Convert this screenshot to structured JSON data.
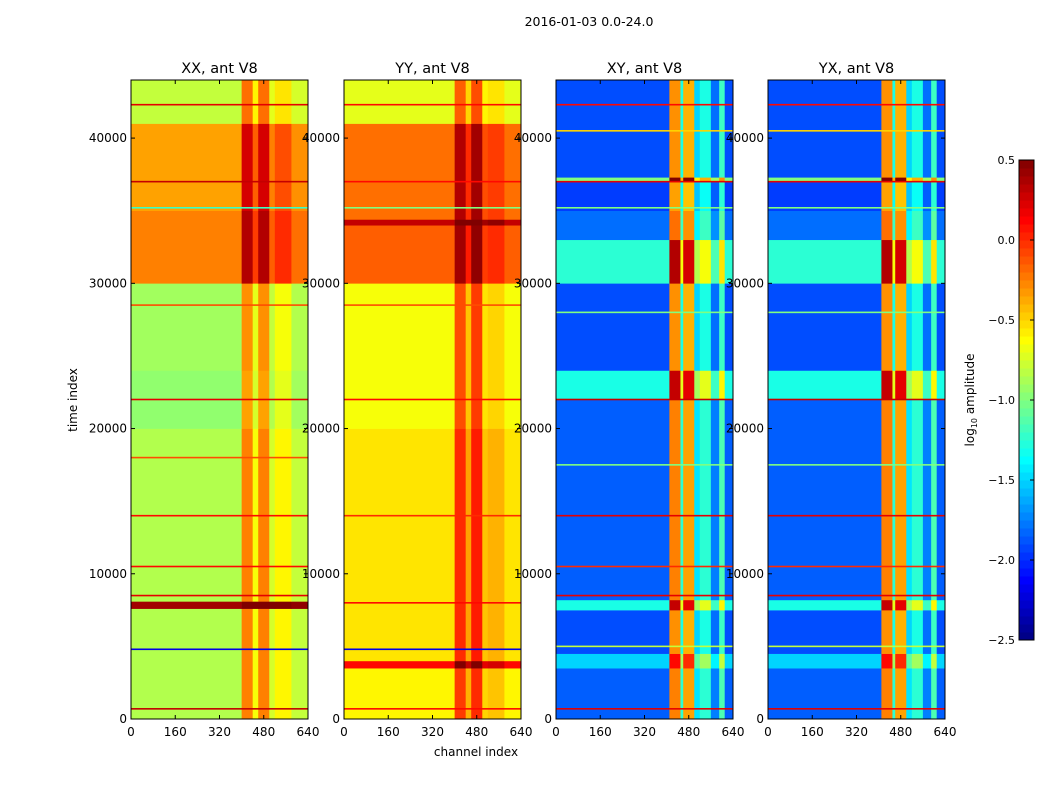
{
  "chart_data": {
    "type": "heatmap",
    "title": "2016-01-03 0.0-24.0",
    "xlabel": "channel index",
    "ylabel": "time index",
    "xlim": [
      0,
      640
    ],
    "ylim": [
      0,
      44000
    ],
    "xticks": [
      0,
      160,
      320,
      480,
      640
    ],
    "yticks": [
      0,
      10000,
      20000,
      30000,
      40000
    ],
    "colorbar": {
      "label_main": "log",
      "label_sub": "10",
      "label_rest": " amplitude",
      "colormap": "jet",
      "range": [
        -2.5,
        0.5
      ],
      "ticks": [
        "0.5",
        "0.0",
        "−0.5",
        "−1.0",
        "−1.5",
        "−2.0",
        "−2.5"
      ],
      "tick_values": [
        0.5,
        0.0,
        -0.5,
        -1.0,
        -1.5,
        -2.0,
        -2.5
      ]
    },
    "panels": [
      {
        "title": "XX, ant V8",
        "time_bands": [
          [
            0,
            7600,
            -0.85
          ],
          [
            7600,
            8100,
            0.4
          ],
          [
            8100,
            20000,
            -0.85
          ],
          [
            20000,
            24000,
            -0.95
          ],
          [
            24000,
            30000,
            -0.9
          ],
          [
            30000,
            35000,
            -0.25
          ],
          [
            35000,
            41000,
            -0.35
          ],
          [
            41000,
            44000,
            -0.8
          ]
        ],
        "channel_bands": [
          [
            0,
            400,
            0
          ],
          [
            400,
            440,
            0.6
          ],
          [
            440,
            460,
            0.2
          ],
          [
            460,
            500,
            0.6
          ],
          [
            500,
            520,
            0.1
          ],
          [
            520,
            580,
            0.25
          ],
          [
            580,
            640,
            0.05
          ]
        ],
        "lines": [
          [
            700,
            0.3
          ],
          [
            4800,
            -2.2
          ],
          [
            8500,
            0.2
          ],
          [
            10500,
            0.1
          ],
          [
            14000,
            0.1
          ],
          [
            18000,
            -0.1
          ],
          [
            22000,
            0.2
          ],
          [
            28500,
            -0.1
          ],
          [
            35200,
            -1.2
          ],
          [
            37000,
            0.3
          ],
          [
            42300,
            0.2
          ]
        ]
      },
      {
        "title": "YY, ant V8",
        "time_bands": [
          [
            0,
            3500,
            -0.6
          ],
          [
            3500,
            4000,
            0.1
          ],
          [
            4000,
            20000,
            -0.55
          ],
          [
            20000,
            30000,
            -0.65
          ],
          [
            30000,
            34000,
            -0.15
          ],
          [
            34000,
            34400,
            0.3
          ],
          [
            34400,
            41000,
            -0.2
          ],
          [
            41000,
            44000,
            -0.7
          ]
        ],
        "channel_bands": [
          [
            0,
            400,
            0
          ],
          [
            400,
            440,
            0.55
          ],
          [
            440,
            460,
            0.2
          ],
          [
            460,
            500,
            0.6
          ],
          [
            500,
            520,
            0.1
          ],
          [
            520,
            580,
            0.15
          ],
          [
            580,
            640,
            0.0
          ]
        ],
        "lines": [
          [
            700,
            0.1
          ],
          [
            4800,
            -2.2
          ],
          [
            8000,
            0.1
          ],
          [
            14000,
            0.0
          ],
          [
            22000,
            0.1
          ],
          [
            28500,
            -0.1
          ],
          [
            35200,
            -1.0
          ],
          [
            37000,
            0.1
          ],
          [
            42300,
            0.1
          ]
        ]
      },
      {
        "title": "XY, ant V8",
        "time_bands": [
          [
            0,
            3500,
            -1.85
          ],
          [
            3500,
            4500,
            -1.5
          ],
          [
            4500,
            7500,
            -1.9
          ],
          [
            7500,
            8200,
            -1.3
          ],
          [
            8200,
            22000,
            -1.85
          ],
          [
            22000,
            24000,
            -1.3
          ],
          [
            24000,
            30000,
            -1.9
          ],
          [
            30000,
            33000,
            -1.25
          ],
          [
            33000,
            35000,
            -1.8
          ],
          [
            35000,
            37000,
            -1.95
          ],
          [
            37000,
            37300,
            -1.0
          ],
          [
            37300,
            44000,
            -1.9
          ]
        ],
        "channel_bands": [
          [
            0,
            410,
            0
          ],
          [
            410,
            450,
            1.6
          ],
          [
            450,
            460,
            0.6
          ],
          [
            460,
            500,
            1.5
          ],
          [
            500,
            520,
            0.4
          ],
          [
            520,
            560,
            0.6
          ],
          [
            560,
            590,
            0.1
          ],
          [
            590,
            610,
            0.7
          ],
          [
            610,
            640,
            0.0
          ]
        ],
        "lines": [
          [
            700,
            0.2
          ],
          [
            5000,
            -0.8
          ],
          [
            8500,
            0.2
          ],
          [
            10500,
            0.0
          ],
          [
            14000,
            0.2
          ],
          [
            17500,
            -1.0
          ],
          [
            22000,
            0.3
          ],
          [
            28000,
            -1.0
          ],
          [
            35200,
            -1.0
          ],
          [
            37000,
            0.2
          ],
          [
            40500,
            -0.5
          ],
          [
            42300,
            0.1
          ]
        ]
      },
      {
        "title": "YX, ant V8",
        "time_bands": [
          [
            0,
            3500,
            -1.85
          ],
          [
            3500,
            4500,
            -1.5
          ],
          [
            4500,
            7500,
            -1.9
          ],
          [
            7500,
            8200,
            -1.3
          ],
          [
            8200,
            22000,
            -1.85
          ],
          [
            22000,
            24000,
            -1.3
          ],
          [
            24000,
            30000,
            -1.9
          ],
          [
            30000,
            33000,
            -1.25
          ],
          [
            33000,
            35000,
            -1.8
          ],
          [
            35000,
            37000,
            -1.95
          ],
          [
            37000,
            37300,
            -1.0
          ],
          [
            37300,
            44000,
            -1.9
          ]
        ],
        "channel_bands": [
          [
            0,
            410,
            0
          ],
          [
            410,
            450,
            1.6
          ],
          [
            450,
            460,
            0.6
          ],
          [
            460,
            500,
            1.5
          ],
          [
            500,
            520,
            0.4
          ],
          [
            520,
            560,
            0.6
          ],
          [
            560,
            590,
            0.1
          ],
          [
            590,
            610,
            0.7
          ],
          [
            610,
            640,
            0.0
          ]
        ],
        "lines": [
          [
            700,
            0.2
          ],
          [
            5000,
            -0.8
          ],
          [
            8500,
            0.2
          ],
          [
            10500,
            0.0
          ],
          [
            14000,
            0.2
          ],
          [
            17500,
            -1.0
          ],
          [
            22000,
            0.3
          ],
          [
            28000,
            -1.0
          ],
          [
            35200,
            -1.0
          ],
          [
            37000,
            0.2
          ],
          [
            40500,
            -0.5
          ],
          [
            42300,
            0.1
          ]
        ]
      }
    ]
  }
}
